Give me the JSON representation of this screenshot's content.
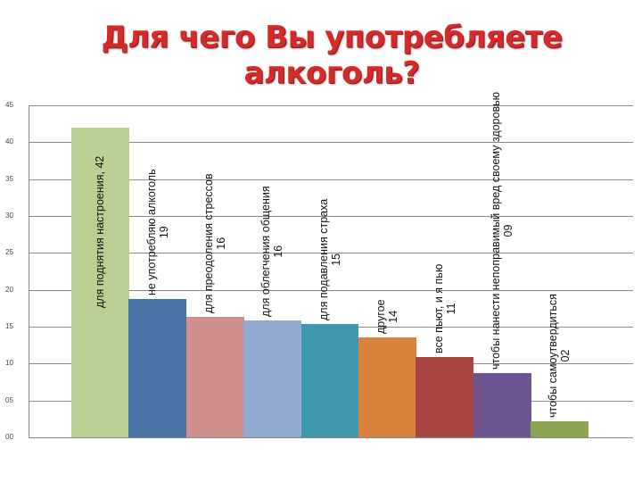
{
  "title": "Для чего Вы употребляете алкоголь?",
  "y_axis": {
    "ticks": [
      "45",
      "40",
      "35",
      "30",
      "25",
      "20",
      "15",
      "10",
      "05",
      "00"
    ]
  },
  "bars": [
    {
      "label": "для поднятия настроения, 42",
      "line1": "для поднятия настроения, 42",
      "line2": "",
      "value": 42,
      "color": "#bacf92"
    },
    {
      "label": "не употребляю алкоголь 19",
      "line1": "не употребляю алкоголь",
      "line2": "19",
      "value": 18.7,
      "color": "#4673a3"
    },
    {
      "label": "для преодоления стрессов 16",
      "line1": "для преодоления стрессов",
      "line2": "16",
      "value": 16.3,
      "color": "#cf8f8e"
    },
    {
      "label": "для облегчения общения 16",
      "line1": "для облегчения общения",
      "line2": "16",
      "value": 15.8,
      "color": "#92a9d0"
    },
    {
      "label": "для подавления страха 15",
      "line1": "для подавления страха",
      "line2": "15",
      "value": 15.4,
      "color": "#3f97ae"
    },
    {
      "label": "другое 14",
      "line1": "другое",
      "line2": "14",
      "value": 13.6,
      "color": "#d8843f"
    },
    {
      "label": "все пьют, и я пью 11",
      "line1": "все пьют, и я пью",
      "line2": "11",
      "value": 10.9,
      "color": "#a84442"
    },
    {
      "label": "чтобы нанести непоправимый вред своему здоровью 09",
      "line1": "чтобы нанести непоправимый вред своему здоровью",
      "line2": "09",
      "value": 8.7,
      "color": "#6e5591"
    },
    {
      "label": "чтобы самоутвердиться 02",
      "line1": "чтобы самоутвердиться",
      "line2": "02",
      "value": 2.2,
      "color": "#8ca553"
    }
  ],
  "chart_data": {
    "type": "bar",
    "title": "Для чего Вы употребляете алкоголь?",
    "categories": [
      "для поднятия настроения",
      "не употребляю алкоголь",
      "для преодоления стрессов",
      "для облегчения общения",
      "для подавления страха",
      "другое",
      "все пьют, и я пью",
      "чтобы нанести непоправимый вред своему здоровью",
      "чтобы самоутвердиться"
    ],
    "values": [
      42,
      19,
      16,
      16,
      15,
      14,
      11,
      9,
      2
    ],
    "data_labels": [
      "42",
      "19",
      "16",
      "16",
      "15",
      "14",
      "11",
      "09",
      "02"
    ],
    "xlabel": "",
    "ylabel": "",
    "ylim": [
      0,
      45
    ],
    "yticks": [
      0,
      5,
      10,
      15,
      20,
      25,
      30,
      35,
      40,
      45
    ],
    "grid": true,
    "legend": "none",
    "colors": [
      "#bacf92",
      "#4673a3",
      "#cf8f8e",
      "#92a9d0",
      "#3f97ae",
      "#d8843f",
      "#a84442",
      "#6e5591",
      "#8ca553"
    ]
  }
}
